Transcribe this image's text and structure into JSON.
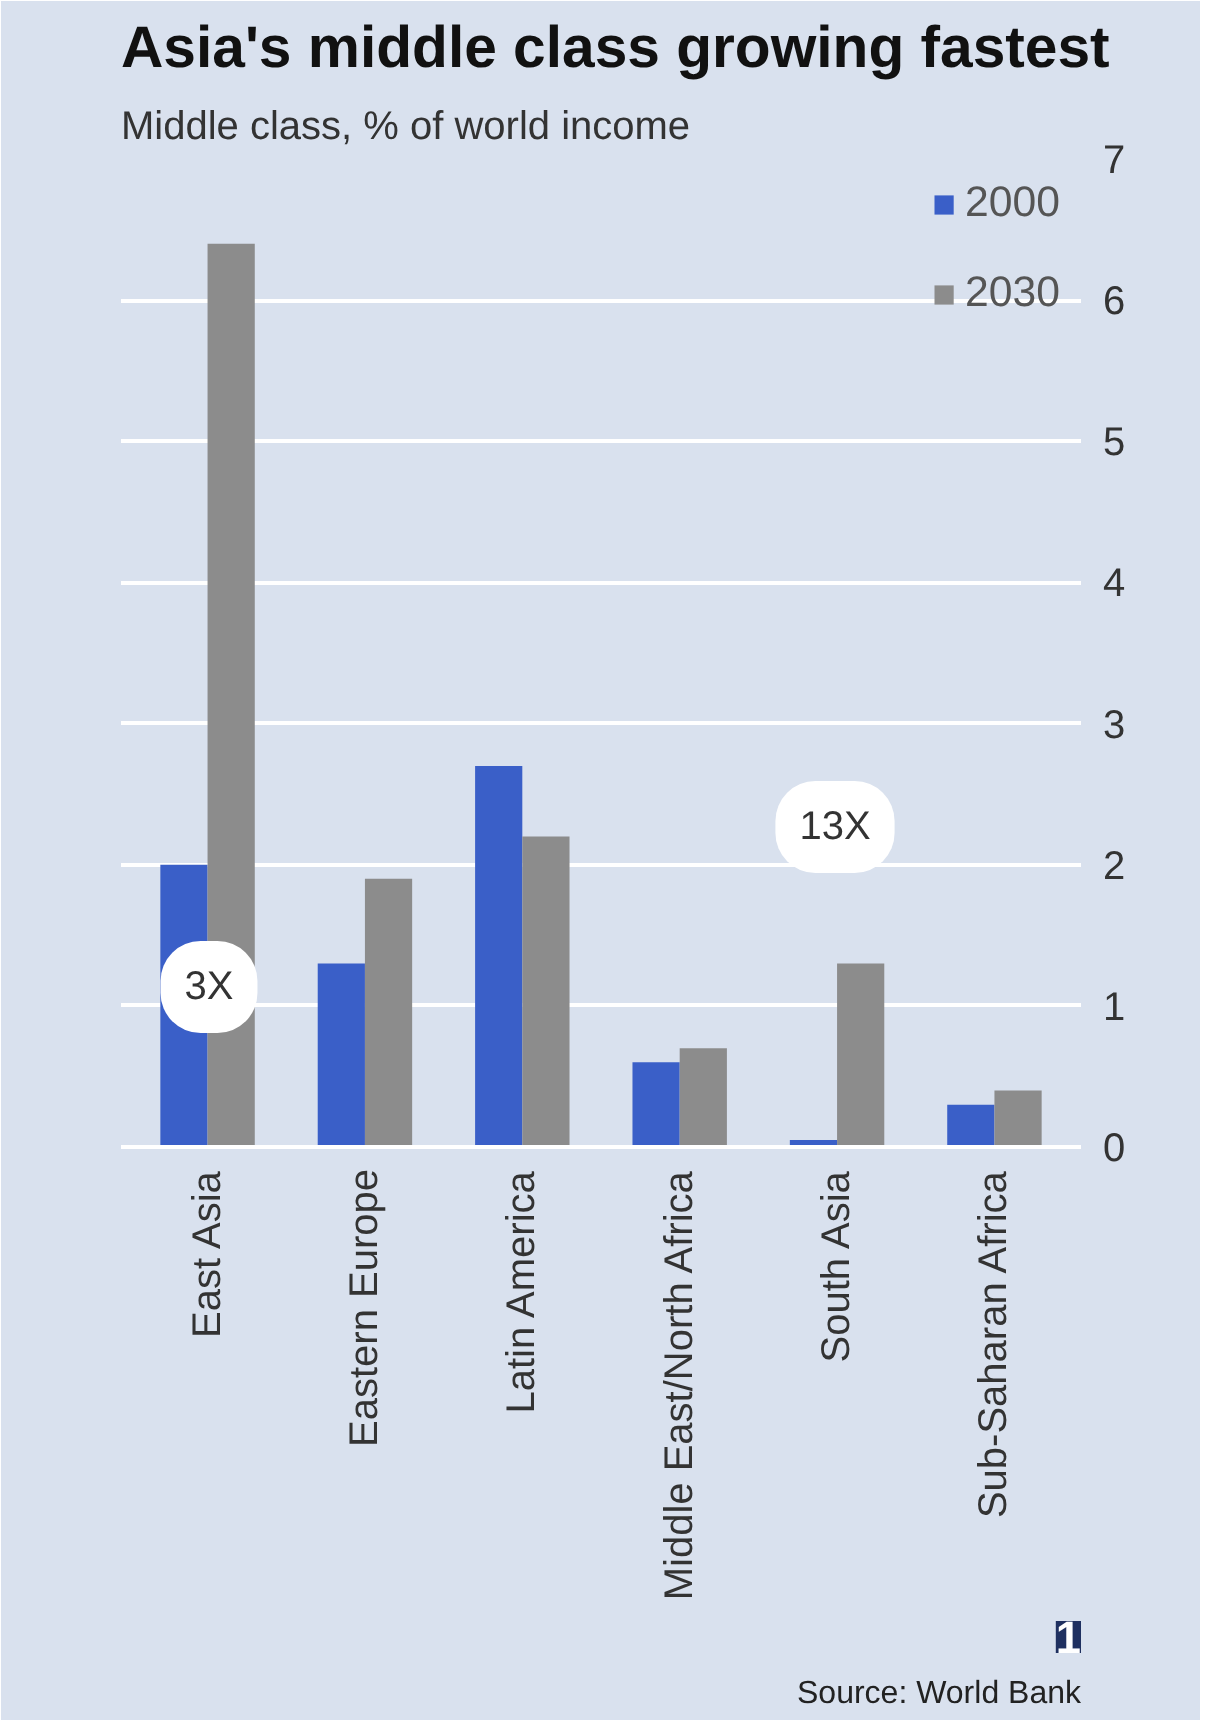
{
  "chart_data": {
    "type": "bar",
    "title": "Asia's middle class growing fastest",
    "subtitle": "Middle class, % of world income",
    "categories": [
      "East Asia",
      "Eastern Europe",
      "Latin America",
      "Middle East/North Africa",
      "South Asia",
      "Sub-Saharan Africa"
    ],
    "series": [
      {
        "name": "2000",
        "color": "#3a5fc8",
        "values": [
          2.0,
          1.3,
          2.7,
          0.6,
          0.05,
          0.3
        ]
      },
      {
        "name": "2030",
        "color": "#8c8c8c",
        "values": [
          6.4,
          1.9,
          2.2,
          0.7,
          1.3,
          0.4
        ]
      }
    ],
    "ylim": [
      0,
      7
    ],
    "yticks": [
      0,
      1,
      2,
      3,
      4,
      5,
      6,
      7
    ],
    "grid": "y",
    "legend": "top right",
    "annotations": [
      "3X",
      "13X",
      "Source: World Bank",
      "1"
    ]
  }
}
